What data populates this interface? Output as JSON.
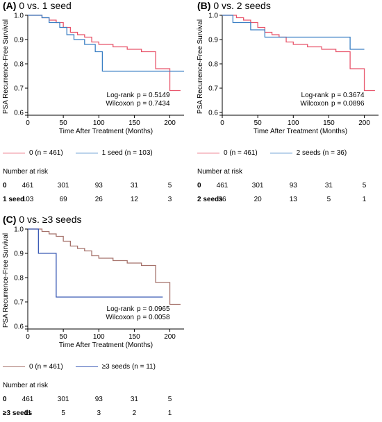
{
  "colors": {
    "zero": "#e8546a",
    "one": "#3a7fc4",
    "two": "#3a7fc4",
    "three_plus": "#3b5bb5",
    "zero_c": "#a5716a"
  },
  "chart_data": [
    {
      "type": "line",
      "panel_letter": "(A)",
      "title": "0 vs. 1 seed",
      "xlabel": "Time After Treatment (Months)",
      "ylabel": "PSA Recurrence-Free Survival",
      "xlim": [
        0,
        220
      ],
      "ylim": [
        0.6,
        1.0
      ],
      "x_ticks": [
        "0",
        "50",
        "100",
        "150",
        "200"
      ],
      "x_tick_values": [
        0,
        50,
        100,
        150,
        200
      ],
      "y_ticks": [
        "0.6",
        "0.7",
        "0.8",
        "0.9",
        "1.0"
      ],
      "y_tick_values": [
        0.6,
        0.7,
        0.8,
        0.9,
        1.0
      ],
      "stats": [
        {
          "label": "Log-rank",
          "p": "p = 0.5149"
        },
        {
          "label": "Wilcoxon",
          "p": "p = 0.7434"
        }
      ],
      "series": [
        {
          "name": "0 (n = 461)",
          "color_key": "zero",
          "x": [
            0,
            10,
            20,
            30,
            40,
            50,
            60,
            70,
            80,
            90,
            100,
            110,
            120,
            140,
            160,
            180,
            190,
            200,
            215
          ],
          "y": [
            1.0,
            1.0,
            0.99,
            0.98,
            0.97,
            0.95,
            0.93,
            0.92,
            0.91,
            0.89,
            0.88,
            0.88,
            0.87,
            0.86,
            0.85,
            0.78,
            0.78,
            0.69,
            0.69
          ]
        },
        {
          "name": "1 seed (n = 103)",
          "color_key": "one",
          "x": [
            0,
            20,
            30,
            45,
            55,
            65,
            80,
            95,
            105,
            120,
            160,
            200,
            220
          ],
          "y": [
            1.0,
            0.99,
            0.97,
            0.95,
            0.92,
            0.9,
            0.88,
            0.85,
            0.77,
            0.77,
            0.77,
            0.77,
            0.77
          ]
        }
      ],
      "risk_table": {
        "title": "Number at risk",
        "rows": [
          {
            "label": "0",
            "values": [
              "461",
              "301",
              "93",
              "31",
              "5"
            ]
          },
          {
            "label": "1 seed",
            "values": [
              "103",
              "69",
              "26",
              "12",
              "3"
            ]
          }
        ]
      }
    },
    {
      "type": "line",
      "panel_letter": "(B)",
      "title": "0 vs. 2 seeds",
      "xlabel": "Time After Treatment (Months)",
      "ylabel": "PSA Recurrence-Free Survival",
      "xlim": [
        0,
        220
      ],
      "ylim": [
        0.6,
        1.0
      ],
      "x_ticks": [
        "0",
        "50",
        "100",
        "150",
        "200"
      ],
      "x_tick_values": [
        0,
        50,
        100,
        150,
        200
      ],
      "y_ticks": [
        "0.6",
        "0.7",
        "0.8",
        "0.9",
        "1.0"
      ],
      "y_tick_values": [
        0.6,
        0.7,
        0.8,
        0.9,
        1.0
      ],
      "stats": [
        {
          "label": "Log-rank",
          "p": "p = 0.3674"
        },
        {
          "label": "Wilcoxon",
          "p": "p = 0.0896"
        }
      ],
      "series": [
        {
          "name": "0 (n = 461)",
          "color_key": "zero",
          "x": [
            0,
            10,
            20,
            30,
            40,
            50,
            60,
            70,
            80,
            90,
            100,
            110,
            120,
            140,
            160,
            180,
            190,
            200,
            215
          ],
          "y": [
            1.0,
            1.0,
            0.99,
            0.98,
            0.97,
            0.95,
            0.93,
            0.92,
            0.91,
            0.89,
            0.88,
            0.88,
            0.87,
            0.86,
            0.85,
            0.78,
            0.78,
            0.69,
            0.69
          ]
        },
        {
          "name": "2 seeds (n = 36)",
          "color_key": "two",
          "x": [
            0,
            15,
            40,
            60,
            180,
            200
          ],
          "y": [
            1.0,
            0.97,
            0.94,
            0.91,
            0.86,
            0.86
          ]
        }
      ],
      "risk_table": {
        "title": "Number at risk",
        "rows": [
          {
            "label": "0",
            "values": [
              "461",
              "301",
              "93",
              "31",
              "5"
            ]
          },
          {
            "label": "2 seeds",
            "values": [
              "36",
              "20",
              "13",
              "5",
              "1"
            ]
          }
        ]
      }
    },
    {
      "type": "line",
      "panel_letter": "(C)",
      "title": "0 vs. ≥3 seeds",
      "xlabel": "Time After Treatment (Months)",
      "ylabel": "PSA Recurrence-Free Survival",
      "xlim": [
        0,
        220
      ],
      "ylim": [
        0.6,
        1.0
      ],
      "x_ticks": [
        "0",
        "50",
        "100",
        "150",
        "200"
      ],
      "x_tick_values": [
        0,
        50,
        100,
        150,
        200
      ],
      "y_ticks": [
        "0.6",
        "0.7",
        "0.8",
        "0.9",
        "1.0"
      ],
      "y_tick_values": [
        0.6,
        0.7,
        0.8,
        0.9,
        1.0
      ],
      "stats": [
        {
          "label": "Log-rank",
          "p": "p = 0.0965"
        },
        {
          "label": "Wilcoxon",
          "p": "p = 0.0058"
        }
      ],
      "series": [
        {
          "name": "0 (n = 461)",
          "color_key": "zero_c",
          "x": [
            0,
            10,
            20,
            30,
            40,
            50,
            60,
            70,
            80,
            90,
            100,
            110,
            120,
            140,
            160,
            180,
            190,
            200,
            215
          ],
          "y": [
            1.0,
            1.0,
            0.99,
            0.98,
            0.97,
            0.95,
            0.93,
            0.92,
            0.91,
            0.89,
            0.88,
            0.88,
            0.87,
            0.86,
            0.85,
            0.78,
            0.78,
            0.69,
            0.69
          ]
        },
        {
          "name": "≥3 seeds (n = 11)",
          "color_key": "three_plus",
          "x": [
            0,
            15,
            40,
            190
          ],
          "y": [
            1.0,
            0.9,
            0.72,
            0.72
          ]
        }
      ],
      "risk_table": {
        "title": "Number at risk",
        "rows": [
          {
            "label": "0",
            "values": [
              "461",
              "301",
              "93",
              "31",
              "5"
            ]
          },
          {
            "label": "≥3 seeds",
            "values": [
              "11",
              "5",
              "3",
              "2",
              "1"
            ]
          }
        ]
      }
    }
  ]
}
